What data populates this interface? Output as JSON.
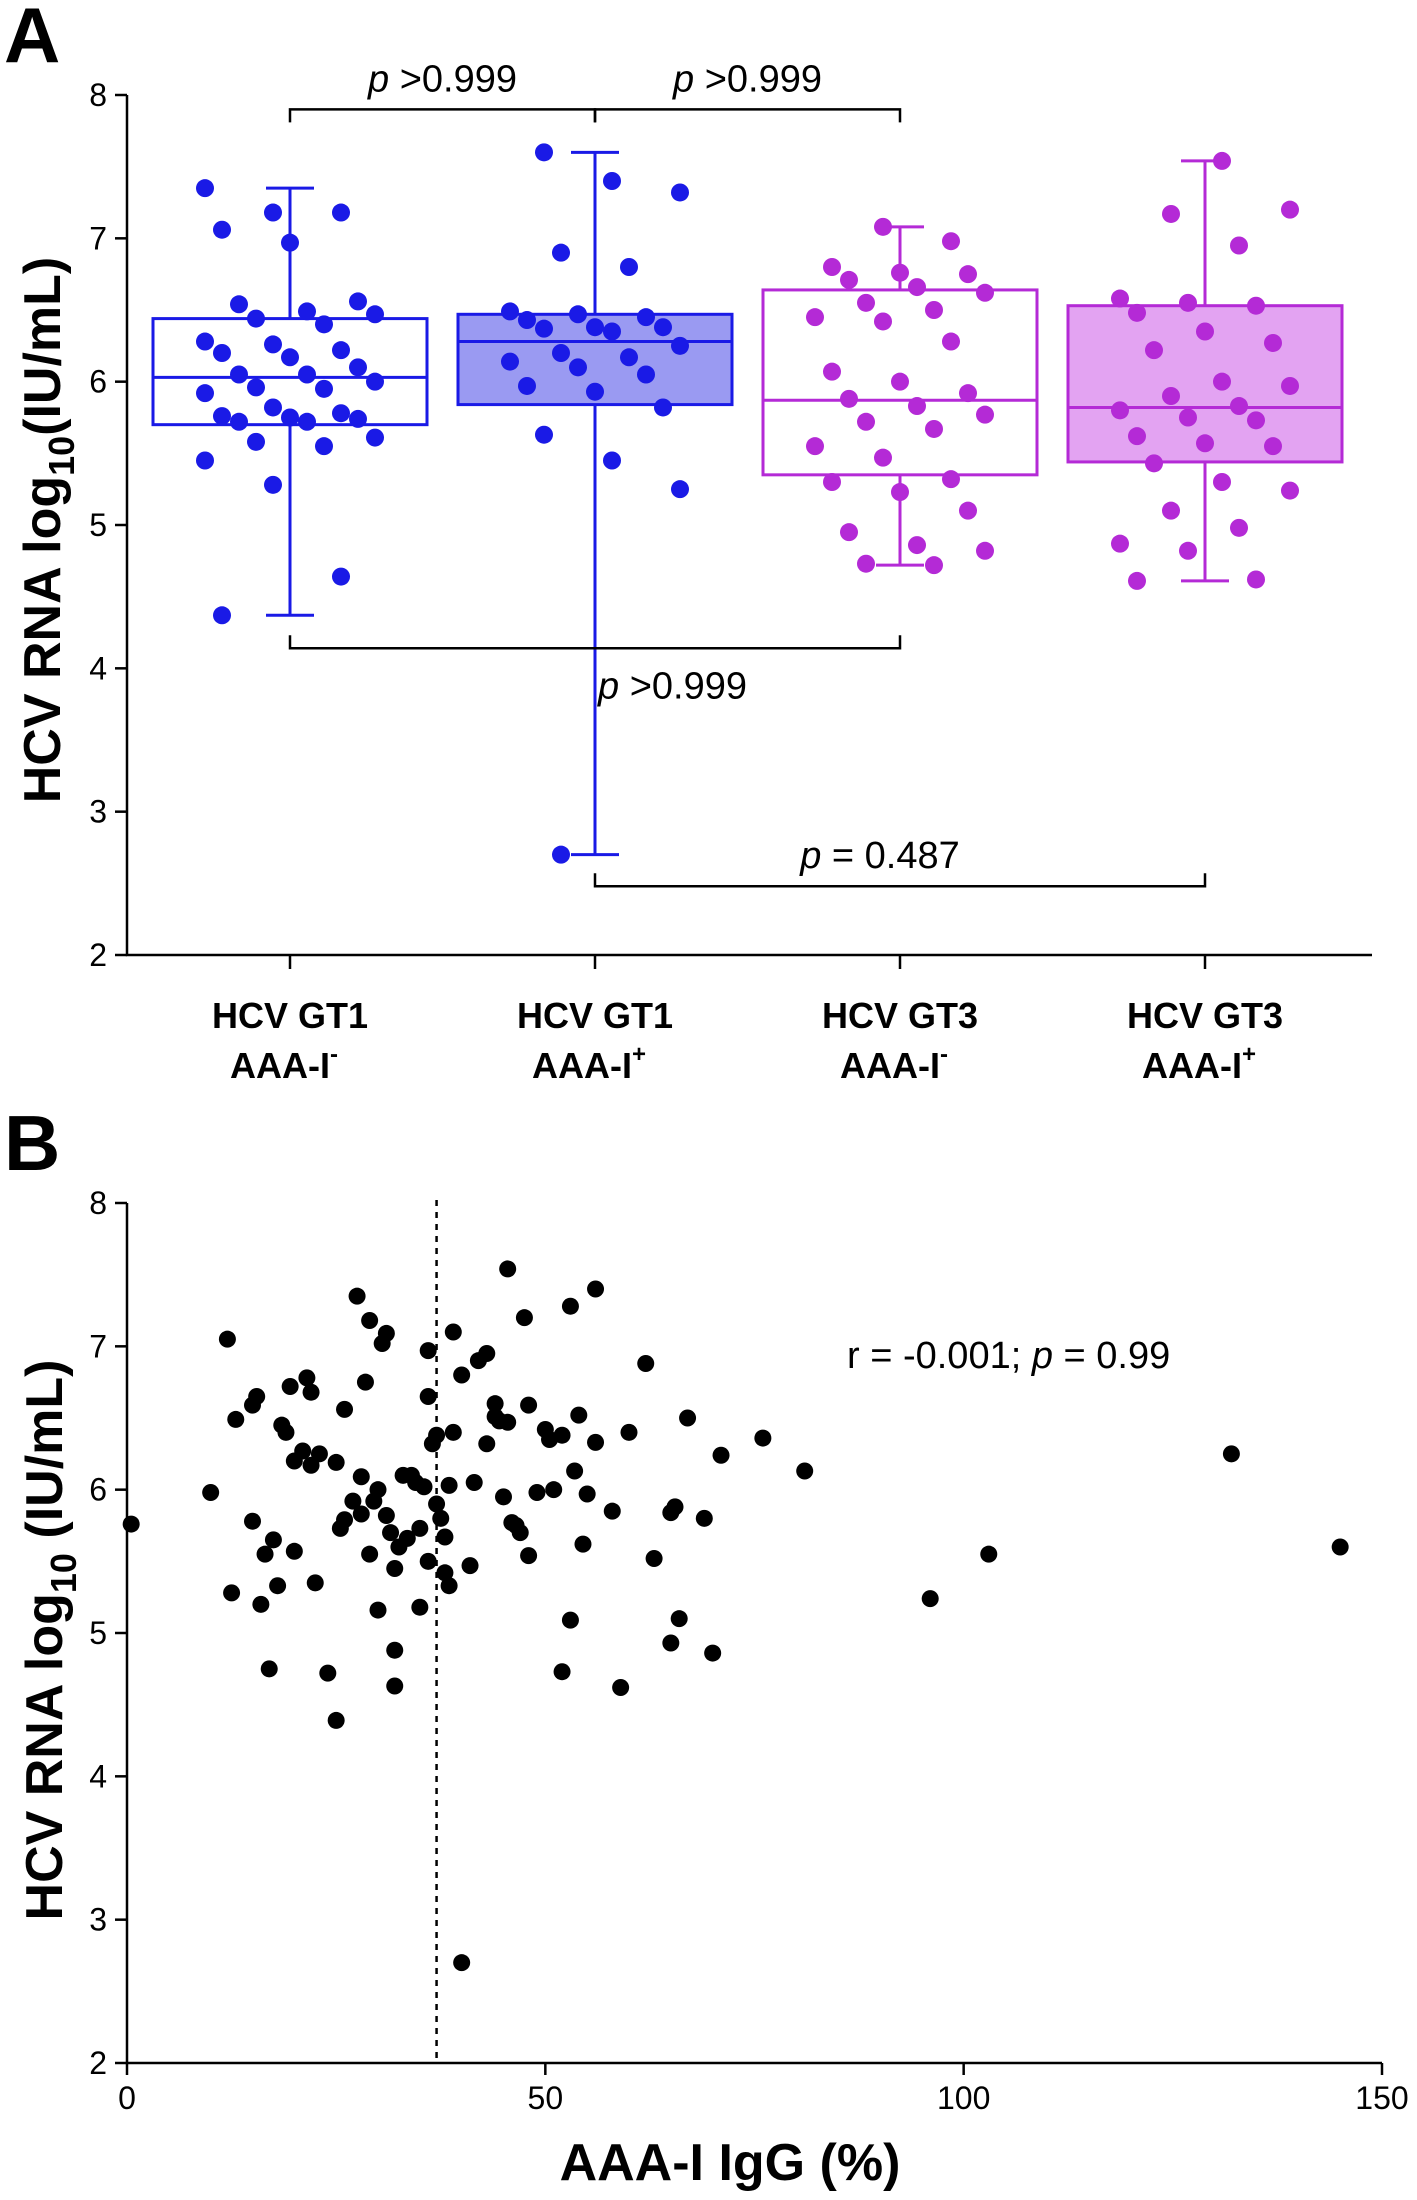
{
  "chart_data": [
    {
      "panel": "A",
      "type": "box",
      "ylabel": "HCV RNA log10(IU/mL)",
      "ylabel_main": "HCV RNA log",
      "ylabel_sub": "10",
      "ylabel_end": "(IU/mL)",
      "ylim": [
        2,
        8
      ],
      "yticks": [
        2,
        3,
        4,
        5,
        6,
        7,
        8
      ],
      "groups": [
        {
          "line1": "HCV GT1",
          "line2": "AAA-I",
          "sup": "-",
          "color": "#1a1ae6",
          "fill": "#ffffff",
          "min": 4.37,
          "q1": 5.7,
          "median": 6.03,
          "q3": 6.44,
          "max": 7.35,
          "points": [
            7.35,
            7.18,
            7.18,
            7.06,
            6.97,
            6.56,
            6.54,
            6.49,
            6.47,
            6.44,
            6.4,
            6.28,
            6.26,
            6.22,
            6.2,
            6.17,
            6.1,
            6.05,
            6.05,
            6.0,
            5.96,
            5.95,
            5.92,
            5.82,
            5.78,
            5.76,
            5.75,
            5.74,
            5.72,
            5.72,
            5.61,
            5.58,
            5.55,
            5.45,
            5.28,
            4.64,
            4.37
          ]
        },
        {
          "line1": "HCV GT1",
          "line2": "AAA-I",
          "sup": "+",
          "color": "#1a1ae6",
          "fill": "#9a9af2",
          "min": 2.7,
          "q1": 5.84,
          "median": 6.28,
          "q3": 6.47,
          "max": 7.6,
          "points": [
            7.6,
            7.4,
            7.32,
            6.9,
            6.8,
            6.49,
            6.47,
            6.45,
            6.43,
            6.38,
            6.38,
            6.37,
            6.35,
            6.25,
            6.2,
            6.17,
            6.14,
            6.1,
            6.05,
            5.97,
            5.93,
            5.82,
            5.63,
            5.45,
            5.25,
            2.7
          ]
        },
        {
          "line1": "HCV GT3",
          "line2": "AAA-I",
          "sup": "-",
          "color": "#b42ad6",
          "fill": "#ffffff",
          "min": 4.72,
          "q1": 5.35,
          "median": 5.87,
          "q3": 6.64,
          "max": 7.08,
          "points": [
            7.08,
            6.98,
            6.8,
            6.76,
            6.75,
            6.71,
            6.66,
            6.62,
            6.55,
            6.5,
            6.45,
            6.42,
            6.28,
            6.07,
            6.0,
            5.92,
            5.88,
            5.83,
            5.77,
            5.72,
            5.67,
            5.55,
            5.47,
            5.32,
            5.3,
            5.23,
            5.1,
            4.95,
            4.86,
            4.82,
            4.73,
            4.72
          ]
        },
        {
          "line1": "HCV GT3",
          "line2": "AAA-I",
          "sup": "+",
          "color": "#b42ad6",
          "fill": "#e3a3f2",
          "min": 4.61,
          "q1": 5.44,
          "median": 5.82,
          "q3": 6.53,
          "max": 7.54,
          "points": [
            7.54,
            7.2,
            7.17,
            6.95,
            6.58,
            6.55,
            6.53,
            6.48,
            6.35,
            6.27,
            6.22,
            6.0,
            5.97,
            5.9,
            5.83,
            5.8,
            5.75,
            5.73,
            5.62,
            5.57,
            5.55,
            5.43,
            5.3,
            5.24,
            5.1,
            4.98,
            4.87,
            4.82,
            4.62,
            4.61
          ]
        }
      ],
      "comparisons": [
        {
          "from": 0,
          "to": 1,
          "y": 7.9,
          "side": "top",
          "label_italic": "p",
          "label_rest": " >0.999"
        },
        {
          "from": 1,
          "to": 2,
          "y": 7.9,
          "side": "top",
          "label_italic": "p",
          "label_rest": " >0.999"
        },
        {
          "from": 0,
          "to": 2,
          "y": 4.14,
          "side": "bottom",
          "label_italic": "p",
          "label_rest": " >0.999"
        },
        {
          "from": 1,
          "to": 3,
          "y": 2.48,
          "side": "bottom",
          "label_italic": "p",
          "label_rest": " = 0.487"
        }
      ]
    },
    {
      "panel": "B",
      "type": "scatter",
      "ylabel": "HCV RNA log10 (IU/mL)",
      "ylabel_main": "HCV RNA log",
      "ylabel_sub": "10",
      "ylabel_end": " (IU/mL)",
      "xlabel": "AAA-I IgG (%)",
      "xlim": [
        0,
        150
      ],
      "ylim": [
        2,
        8
      ],
      "xticks": [
        0,
        50,
        100,
        150
      ],
      "yticks": [
        2,
        3,
        4,
        5,
        6,
        7,
        8
      ],
      "threshold_x": 37,
      "annotation_pre": "r = -0.001; ",
      "annotation_italic": "p",
      "annotation_post": " = 0.99",
      "points": [
        [
          0.5,
          5.76
        ],
        [
          10,
          5.98
        ],
        [
          12,
          7.05
        ],
        [
          12.5,
          5.28
        ],
        [
          13,
          6.49
        ],
        [
          15,
          5.78
        ],
        [
          15.5,
          6.65
        ],
        [
          15,
          6.59
        ],
        [
          16,
          5.2
        ],
        [
          16.5,
          5.55
        ],
        [
          17,
          4.75
        ],
        [
          17.5,
          5.65
        ],
        [
          18,
          5.33
        ],
        [
          18.5,
          6.45
        ],
        [
          19,
          6.4
        ],
        [
          19.5,
          6.72
        ],
        [
          20,
          6.2
        ],
        [
          20,
          5.57
        ],
        [
          21,
          6.27
        ],
        [
          21.5,
          6.78
        ],
        [
          22,
          6.17
        ],
        [
          22,
          6.68
        ],
        [
          22.5,
          5.35
        ],
        [
          23,
          6.25
        ],
        [
          24,
          4.72
        ],
        [
          25,
          4.39
        ],
        [
          25,
          6.19
        ],
        [
          25.5,
          5.73
        ],
        [
          26,
          6.56
        ],
        [
          26,
          5.79
        ],
        [
          27,
          5.92
        ],
        [
          27.5,
          7.35
        ],
        [
          28,
          6.09
        ],
        [
          28,
          5.83
        ],
        [
          28.5,
          6.75
        ],
        [
          29,
          7.18
        ],
        [
          29,
          5.55
        ],
        [
          29.5,
          5.92
        ],
        [
          30,
          6.0
        ],
        [
          30,
          5.16
        ],
        [
          30.5,
          7.02
        ],
        [
          31,
          7.09
        ],
        [
          31,
          5.82
        ],
        [
          31.5,
          5.7
        ],
        [
          32,
          5.45
        ],
        [
          32,
          4.63
        ],
        [
          32,
          4.88
        ],
        [
          32.5,
          5.6
        ],
        [
          33,
          6.1
        ],
        [
          33.5,
          5.66
        ],
        [
          34,
          6.1
        ],
        [
          34.5,
          6.05
        ],
        [
          35,
          5.73
        ],
        [
          35,
          5.18
        ],
        [
          35.5,
          6.02
        ],
        [
          36,
          5.5
        ],
        [
          36,
          6.65
        ],
        [
          36,
          6.97
        ],
        [
          36.5,
          6.32
        ],
        [
          37,
          5.9
        ],
        [
          37,
          6.38
        ],
        [
          37.5,
          5.8
        ],
        [
          38,
          5.42
        ],
        [
          38,
          5.67
        ],
        [
          38.5,
          6.03
        ],
        [
          38.5,
          5.33
        ],
        [
          39,
          7.1
        ],
        [
          39,
          6.4
        ],
        [
          40,
          2.7
        ],
        [
          40,
          6.8
        ],
        [
          41,
          5.47
        ],
        [
          41.5,
          6.05
        ],
        [
          42,
          6.9
        ],
        [
          43,
          6.95
        ],
        [
          43,
          6.32
        ],
        [
          44,
          6.6
        ],
        [
          44,
          6.51
        ],
        [
          44.5,
          6.48
        ],
        [
          45,
          5.95
        ],
        [
          45.5,
          6.47
        ],
        [
          45.5,
          7.54
        ],
        [
          46,
          5.77
        ],
        [
          46.5,
          5.75
        ],
        [
          47,
          5.7
        ],
        [
          47.5,
          7.2
        ],
        [
          48,
          6.59
        ],
        [
          48,
          5.54
        ],
        [
          49,
          5.98
        ],
        [
          50,
          6.42
        ],
        [
          50.5,
          6.35
        ],
        [
          51,
          6.0
        ],
        [
          52,
          6.38
        ],
        [
          52,
          4.73
        ],
        [
          53,
          7.28
        ],
        [
          53,
          5.09
        ],
        [
          53.5,
          6.13
        ],
        [
          54,
          6.52
        ],
        [
          54.5,
          5.62
        ],
        [
          55,
          5.97
        ],
        [
          56,
          7.4
        ],
        [
          56,
          6.33
        ],
        [
          58,
          5.85
        ],
        [
          59,
          4.62
        ],
        [
          60,
          6.4
        ],
        [
          62,
          6.88
        ],
        [
          63,
          5.52
        ],
        [
          65,
          5.84
        ],
        [
          65,
          4.93
        ],
        [
          65.5,
          5.88
        ],
        [
          66,
          5.1
        ],
        [
          67,
          6.5
        ],
        [
          69,
          5.8
        ],
        [
          70,
          4.86
        ],
        [
          71,
          6.24
        ],
        [
          76,
          6.36
        ],
        [
          81,
          6.13
        ],
        [
          96,
          5.24
        ],
        [
          103,
          5.55
        ],
        [
          132,
          6.25
        ],
        [
          145,
          5.6
        ]
      ]
    }
  ]
}
